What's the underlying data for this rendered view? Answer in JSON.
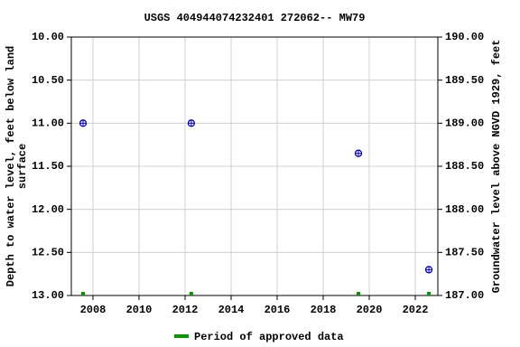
{
  "chart_data": {
    "type": "scatter",
    "title": "USGS 404944074232401 272062-- MW79",
    "ylabel": [
      "Depth to water level, feet below land",
      "surface"
    ],
    "y2label": "Groundwater level above NGVD 1929, feet",
    "xlim": [
      2007.06,
      2022.98
    ],
    "xticks": [
      2008,
      2010,
      2012,
      2014,
      2016,
      2018,
      2020,
      2022
    ],
    "ylim": [
      10,
      13
    ],
    "y_inverted": true,
    "yticks": [
      {
        "value": 10,
        "label": "10.00"
      },
      {
        "value": 10.5,
        "label": "10.50"
      },
      {
        "value": 11,
        "label": "11.00"
      },
      {
        "value": 11.5,
        "label": "11.50"
      },
      {
        "value": 12,
        "label": "12.00"
      },
      {
        "value": 12.5,
        "label": "12.50"
      },
      {
        "value": 13,
        "label": "13.00"
      }
    ],
    "y2lim": [
      187,
      190
    ],
    "y2ticks": [
      {
        "value": 190,
        "label": "190.00"
      },
      {
        "value": 189.5,
        "label": "189.50"
      },
      {
        "value": 189,
        "label": "189.00"
      },
      {
        "value": 188.5,
        "label": "188.50"
      },
      {
        "value": 188,
        "label": "188.00"
      },
      {
        "value": 187.5,
        "label": "187.50"
      },
      {
        "value": 187,
        "label": "187.00"
      }
    ],
    "grid": true,
    "series": [
      {
        "color": "#0000cc",
        "x": [
          2007.57,
          2012.27,
          2019.53,
          2022.59
        ],
        "values": [
          11.0,
          11.0,
          11.35,
          12.7
        ]
      }
    ],
    "approved": {
      "name": "Period of approved data",
      "color": "#009900",
      "x": [
        2007.57,
        2012.27,
        2019.53,
        2022.59
      ]
    }
  }
}
